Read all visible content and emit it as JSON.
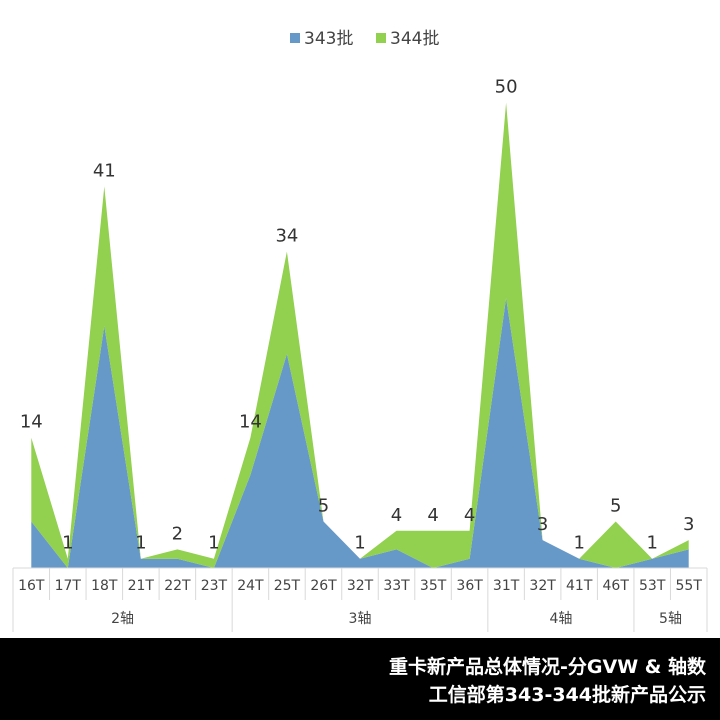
{
  "chart_data": {
    "type": "area",
    "stacked": true,
    "categories": [
      "16T",
      "17T",
      "18T",
      "21T",
      "22T",
      "23T",
      "24T",
      "25T",
      "26T",
      "32T",
      "33T",
      "35T",
      "36T",
      "31T",
      "32T",
      "41T",
      "46T",
      "53T",
      "55T"
    ],
    "groups": [
      {
        "label": "2轴",
        "count": 6
      },
      {
        "label": "3轴",
        "count": 7
      },
      {
        "label": "4轴",
        "count": 4
      },
      {
        "label": "5轴",
        "count": 2
      }
    ],
    "series": [
      {
        "name": "343批",
        "color": "#6699C8",
        "values": [
          5,
          0,
          26,
          1,
          1,
          0,
          10,
          23,
          5,
          1,
          2,
          0,
          1,
          29,
          3,
          1,
          0,
          1,
          2
        ]
      },
      {
        "name": "344批",
        "color": "#92D050",
        "values": [
          9,
          1,
          15,
          0,
          1,
          1,
          4,
          11,
          0,
          0,
          2,
          4,
          3,
          21,
          0,
          0,
          5,
          0,
          1
        ]
      }
    ],
    "totals": [
      14,
      1,
      41,
      1,
      2,
      1,
      14,
      34,
      5,
      1,
      4,
      4,
      4,
      50,
      3,
      1,
      5,
      1,
      3
    ],
    "ylim": [
      0,
      52
    ],
    "legend_position": "top",
    "grid": false
  },
  "footer": {
    "line1": "重卡新产品总体情况-分GVW & 轴数",
    "line2": "工信部第343-344批新产品公示"
  }
}
